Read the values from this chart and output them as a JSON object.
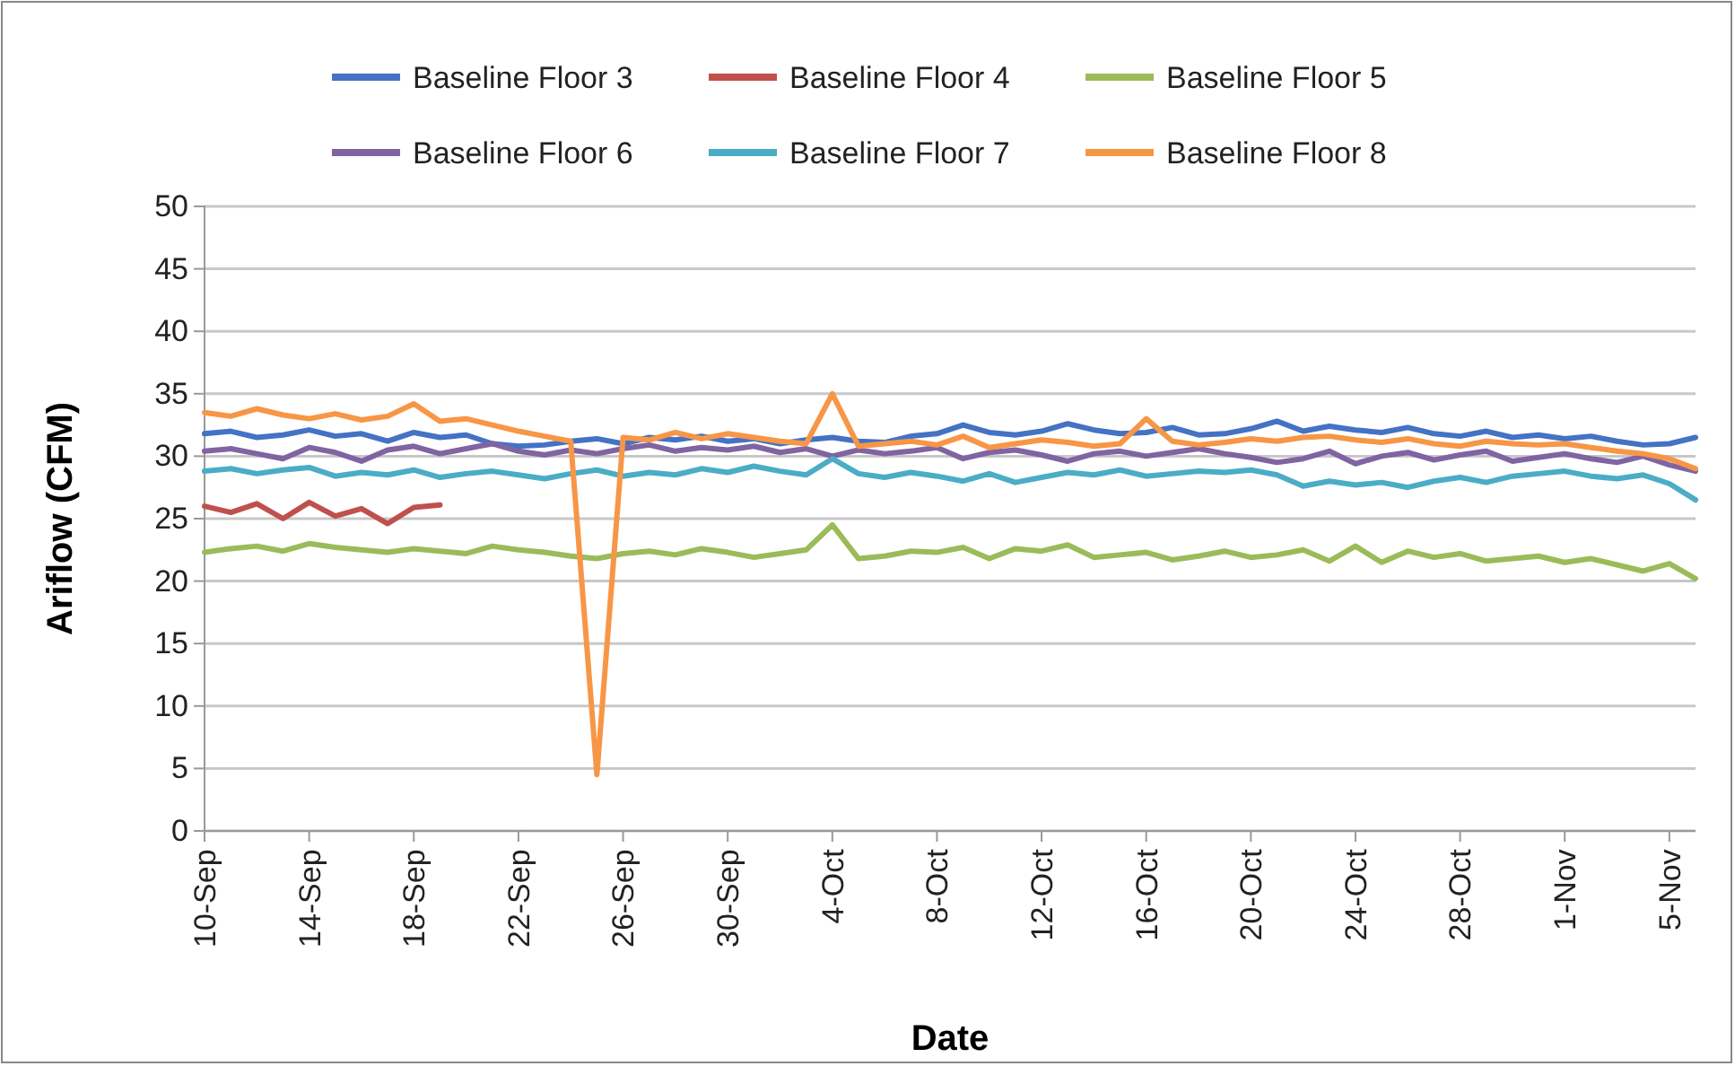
{
  "chart_data": {
    "type": "line",
    "xlabel": "Date",
    "ylabel": "Ariflow (CFM)",
    "legend": "top",
    "grid": "y",
    "line_style": "solid",
    "marker": "none",
    "ylim": [
      0,
      50
    ],
    "yticks": [
      0,
      5,
      10,
      15,
      20,
      25,
      30,
      35,
      40,
      45,
      50
    ],
    "xlim": [
      "--09-10",
      "--11-06"
    ],
    "xticks": [
      {
        "value": "--09-10",
        "label": "10-Sep"
      },
      {
        "value": "--09-14",
        "label": "14-Sep"
      },
      {
        "value": "--09-18",
        "label": "18-Sep"
      },
      {
        "value": "--09-22",
        "label": "22-Sep"
      },
      {
        "value": "--09-26",
        "label": "26-Sep"
      },
      {
        "value": "--09-30",
        "label": "30-Sep"
      },
      {
        "value": "--10-04",
        "label": "4-Oct"
      },
      {
        "value": "--10-08",
        "label": "8-Oct"
      },
      {
        "value": "--10-12",
        "label": "12-Oct"
      },
      {
        "value": "--10-16",
        "label": "16-Oct"
      },
      {
        "value": "--10-20",
        "label": "20-Oct"
      },
      {
        "value": "--10-24",
        "label": "24-Oct"
      },
      {
        "value": "--10-28",
        "label": "28-Oct"
      },
      {
        "value": "--11-01",
        "label": "1-Nov"
      },
      {
        "value": "--11-05",
        "label": "5-Nov"
      }
    ],
    "x": [
      "--09-10",
      "--09-11",
      "--09-12",
      "--09-13",
      "--09-14",
      "--09-15",
      "--09-16",
      "--09-17",
      "--09-18",
      "--09-19",
      "--09-20",
      "--09-21",
      "--09-22",
      "--09-23",
      "--09-24",
      "--09-25",
      "--09-26",
      "--09-27",
      "--09-28",
      "--09-29",
      "--09-30",
      "--10-01",
      "--10-02",
      "--10-03",
      "--10-04",
      "--10-05",
      "--10-06",
      "--10-07",
      "--10-08",
      "--10-09",
      "--10-10",
      "--10-11",
      "--10-12",
      "--10-13",
      "--10-14",
      "--10-15",
      "--10-16",
      "--10-17",
      "--10-18",
      "--10-19",
      "--10-20",
      "--10-21",
      "--10-22",
      "--10-23",
      "--10-24",
      "--10-25",
      "--10-26",
      "--10-27",
      "--10-28",
      "--10-29",
      "--10-30",
      "--10-31",
      "--11-01",
      "--11-02",
      "--11-03",
      "--11-04",
      "--11-05",
      "--11-06"
    ],
    "series": [
      {
        "name": "Baseline Floor 3",
        "color": "#4472c4",
        "values": [
          31.8,
          32.0,
          31.5,
          31.7,
          32.1,
          31.6,
          31.8,
          31.2,
          31.9,
          31.5,
          31.7,
          31.0,
          30.8,
          30.9,
          31.2,
          31.4,
          31.0,
          31.5,
          31.3,
          31.6,
          31.2,
          31.4,
          31.0,
          31.3,
          31.5,
          31.2,
          31.1,
          31.6,
          31.8,
          32.5,
          31.9,
          31.7,
          32.0,
          32.6,
          32.1,
          31.8,
          31.9,
          32.3,
          31.7,
          31.8,
          32.2,
          32.8,
          32.0,
          32.4,
          32.1,
          31.9,
          32.3,
          31.8,
          31.6,
          32.0,
          31.5,
          31.7,
          31.4,
          31.6,
          31.2,
          30.9,
          31.0,
          31.5
        ]
      },
      {
        "name": "Baseline Floor 4",
        "color": "#c0504d",
        "values": [
          26.0,
          25.5,
          26.2,
          25.0,
          26.3,
          25.2,
          25.8,
          24.6,
          25.9,
          26.1,
          null,
          null,
          null,
          null,
          null,
          null,
          null,
          null,
          null,
          null,
          null,
          null,
          null,
          null,
          null,
          null,
          null,
          null,
          null,
          null,
          null,
          null,
          null,
          null,
          null,
          null,
          null,
          null,
          null,
          null,
          null,
          null,
          null,
          null,
          null,
          null,
          null,
          null,
          null,
          null,
          null,
          null,
          null,
          null,
          null,
          null,
          null,
          null
        ]
      },
      {
        "name": "Baseline Floor 5",
        "color": "#9bbb59",
        "values": [
          22.3,
          22.6,
          22.8,
          22.4,
          23.0,
          22.7,
          22.5,
          22.3,
          22.6,
          22.4,
          22.2,
          22.8,
          22.5,
          22.3,
          22.0,
          21.8,
          22.2,
          22.4,
          22.1,
          22.6,
          22.3,
          21.9,
          22.2,
          22.5,
          24.5,
          21.8,
          22.0,
          22.4,
          22.3,
          22.7,
          21.8,
          22.6,
          22.4,
          22.9,
          21.9,
          22.1,
          22.3,
          21.7,
          22.0,
          22.4,
          21.9,
          22.1,
          22.5,
          21.6,
          22.8,
          21.5,
          22.4,
          21.9,
          22.2,
          21.6,
          21.8,
          22.0,
          21.5,
          21.8,
          21.3,
          20.8,
          21.4,
          20.2
        ]
      },
      {
        "name": "Baseline Floor 6",
        "color": "#8064a2",
        "values": [
          30.4,
          30.6,
          30.2,
          29.8,
          30.7,
          30.3,
          29.6,
          30.5,
          30.8,
          30.2,
          30.6,
          31.0,
          30.4,
          30.1,
          30.5,
          30.2,
          30.6,
          30.9,
          30.4,
          30.7,
          30.5,
          30.8,
          30.3,
          30.6,
          30.0,
          30.5,
          30.2,
          30.4,
          30.7,
          29.8,
          30.3,
          30.5,
          30.1,
          29.6,
          30.2,
          30.4,
          30.0,
          30.3,
          30.6,
          30.2,
          29.9,
          29.5,
          29.8,
          30.4,
          29.4,
          30.0,
          30.3,
          29.7,
          30.1,
          30.4,
          29.6,
          29.9,
          30.2,
          29.8,
          29.5,
          30.0,
          29.3,
          28.8
        ]
      },
      {
        "name": "Baseline Floor 7",
        "color": "#4bacc6",
        "values": [
          28.8,
          29.0,
          28.6,
          28.9,
          29.1,
          28.4,
          28.7,
          28.5,
          28.9,
          28.3,
          28.6,
          28.8,
          28.5,
          28.2,
          28.6,
          28.9,
          28.4,
          28.7,
          28.5,
          29.0,
          28.7,
          29.2,
          28.8,
          28.5,
          29.8,
          28.6,
          28.3,
          28.7,
          28.4,
          28.0,
          28.6,
          27.9,
          28.3,
          28.7,
          28.5,
          28.9,
          28.4,
          28.6,
          28.8,
          28.7,
          28.9,
          28.5,
          27.6,
          28.0,
          27.7,
          27.9,
          27.5,
          28.0,
          28.3,
          27.9,
          28.4,
          28.6,
          28.8,
          28.4,
          28.2,
          28.5,
          27.8,
          26.5
        ]
      },
      {
        "name": "Baseline Floor 8",
        "color": "#f79646",
        "values": [
          33.5,
          33.2,
          33.8,
          33.3,
          33.0,
          33.4,
          32.9,
          33.2,
          34.2,
          32.8,
          33.0,
          32.5,
          32.0,
          31.6,
          31.2,
          4.5,
          31.5,
          31.3,
          31.9,
          31.4,
          31.8,
          31.5,
          31.2,
          31.0,
          35.0,
          30.8,
          31.0,
          31.2,
          30.9,
          31.6,
          30.7,
          31.0,
          31.3,
          31.1,
          30.8,
          31.0,
          33.0,
          31.2,
          30.9,
          31.1,
          31.4,
          31.2,
          31.5,
          31.6,
          31.3,
          31.1,
          31.4,
          31.0,
          30.8,
          31.2,
          31.0,
          30.9,
          31.0,
          30.7,
          30.4,
          30.2,
          29.8,
          29.0
        ]
      }
    ]
  }
}
